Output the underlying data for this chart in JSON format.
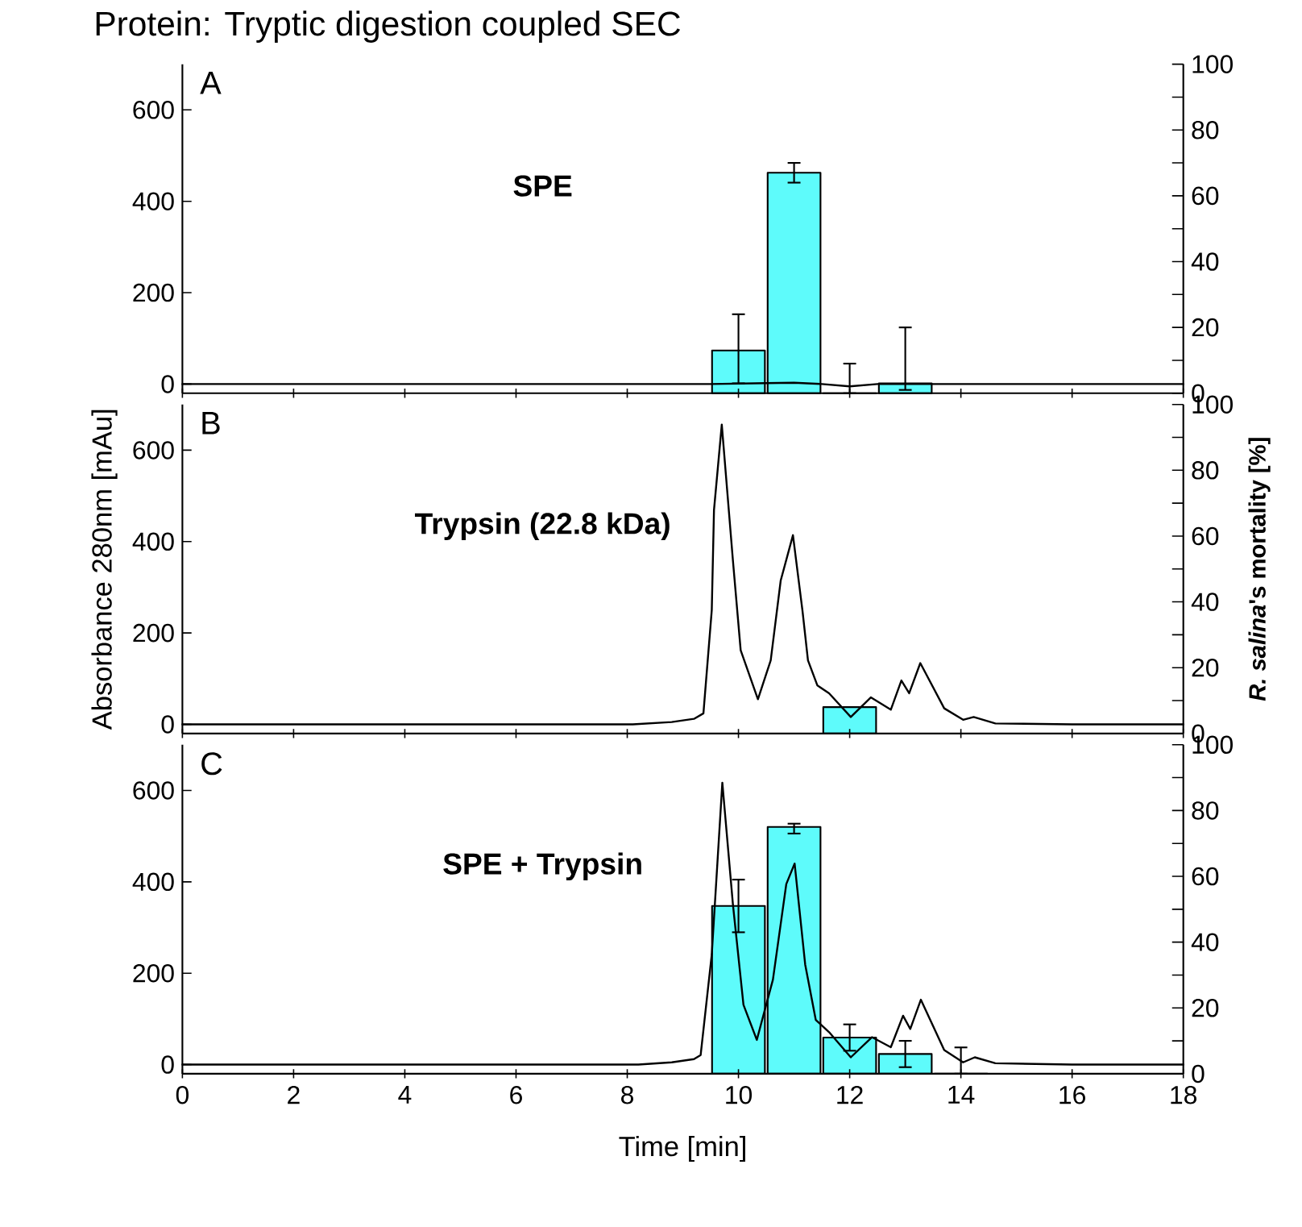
{
  "chart_data": [
    {
      "type": "bar",
      "title": "Protein: Tryptic digestion coupled SEC",
      "annotations": [
        "A",
        "SPE"
      ],
      "x": [
        10,
        11,
        12,
        13
      ],
      "series": [
        {
          "axis": "y2",
          "color": "#5efbfb",
          "values": [
            13,
            67,
            0,
            3
          ],
          "errors": [
            [
              3,
              24
            ],
            [
              64,
              70
            ],
            [
              0,
              9
            ],
            [
              1,
              20
            ]
          ]
        },
        {
          "type": "line",
          "color": "#000000",
          "x": [
            0,
            9.5,
            10.5,
            11,
            11.5,
            12,
            12.5,
            18
          ],
          "values": [
            0,
            0,
            2,
            3,
            0,
            -5,
            0,
            0
          ]
        }
      ],
      "xlim": [
        0,
        18
      ],
      "xticks": [
        0,
        2,
        4,
        6,
        8,
        10,
        12,
        14,
        16,
        18
      ],
      "ylim": [
        -20,
        700
      ],
      "yticks": [
        0,
        200,
        400,
        600
      ],
      "y2lim": [
        0,
        100
      ],
      "y2ticks": [
        0,
        {
          "value": 10,
          "label": null
        },
        20,
        {
          "value": 30,
          "label": null
        },
        40,
        {
          "value": 50,
          "label": null
        },
        60,
        {
          "value": 70,
          "label": null
        },
        80,
        {
          "value": 90,
          "label": null
        },
        100
      ],
      "tick_labels": "y"
    },
    {
      "type": "bar",
      "annotations": [
        "B",
        "Trypsin (22.8 kDa)"
      ],
      "ylabel": "Absorbance 280nm [mAu]",
      "y2label": "*R. salina*'s mortality [%]",
      "x": [
        12
      ],
      "series": [
        {
          "axis": "y2",
          "color": "#5efbfb",
          "values": [
            8
          ]
        },
        {
          "type": "line",
          "color": "#000000",
          "x": [
            0,
            8.1,
            8.8,
            9.2,
            9.37,
            9.52,
            9.56,
            9.7,
            9.9,
            10.04,
            10.35,
            10.58,
            10.76,
            10.98,
            11.15,
            11.25,
            11.42,
            11.63,
            12.02,
            12.38,
            12.74,
            12.93,
            13.07,
            13.27,
            13.7,
            14.04,
            14.23,
            14.62,
            16,
            18
          ],
          "values": [
            0,
            0,
            5,
            12,
            24,
            250,
            469,
            656,
            359,
            162,
            55,
            140,
            315,
            414,
            250,
            140,
            85,
            68,
            16,
            59,
            32,
            96,
            68,
            134,
            35,
            10,
            16,
            2,
            0,
            0
          ]
        }
      ],
      "xlim": [
        0,
        18
      ],
      "xticks": [
        0,
        2,
        4,
        6,
        8,
        10,
        12,
        14,
        16,
        18
      ],
      "ylim": [
        -20,
        700
      ],
      "yticks": [
        0,
        200,
        400,
        600
      ],
      "y2lim": [
        0,
        100
      ],
      "y2ticks": [
        0,
        {
          "value": 10,
          "label": null
        },
        20,
        {
          "value": 30,
          "label": null
        },
        40,
        {
          "value": 50,
          "label": null
        },
        60,
        {
          "value": 70,
          "label": null
        },
        80,
        {
          "value": 90,
          "label": null
        },
        100
      ],
      "tick_labels": "y"
    },
    {
      "type": "bar",
      "annotations": [
        "C",
        "SPE + Trypsin"
      ],
      "xlabel": "Time [min]",
      "x": [
        10,
        11,
        12,
        13,
        14
      ],
      "series": [
        {
          "axis": "y2",
          "color": "#5efbfb",
          "values": [
            51,
            75,
            11,
            6,
            0
          ],
          "errors": [
            [
              43,
              59
            ],
            [
              73,
              76
            ],
            [
              7,
              15
            ],
            [
              2,
              10
            ],
            [
              0,
              8
            ]
          ]
        },
        {
          "type": "line",
          "color": "#000000",
          "x": [
            0,
            8.2,
            8.8,
            9.2,
            9.32,
            9.52,
            9.71,
            9.9,
            10.09,
            10.33,
            10.62,
            10.86,
            11.01,
            11.2,
            11.39,
            11.63,
            12.02,
            12.4,
            12.74,
            12.96,
            13.09,
            13.28,
            13.7,
            14.04,
            14.25,
            14.62,
            16,
            18
          ],
          "values": [
            0,
            0,
            5,
            12,
            21,
            241,
            617,
            351,
            131,
            54,
            186,
            395,
            440,
            219,
            98,
            71,
            16,
            60,
            38,
            107,
            78,
            142,
            32,
            5,
            16,
            3,
            0,
            0
          ]
        }
      ],
      "xlim": [
        0,
        18
      ],
      "xticks": [
        0,
        2,
        4,
        6,
        8,
        10,
        12,
        14,
        16,
        18
      ],
      "ylim": [
        -20,
        700
      ],
      "yticks": [
        0,
        200,
        400,
        600
      ],
      "y2lim": [
        0,
        100
      ],
      "y2ticks": [
        0,
        {
          "value": 10,
          "label": null
        },
        20,
        {
          "value": 30,
          "label": null
        },
        40,
        {
          "value": 50,
          "label": null
        },
        60,
        {
          "value": 70,
          "label": null
        },
        80,
        {
          "value": 90,
          "label": null
        },
        100
      ]
    }
  ]
}
